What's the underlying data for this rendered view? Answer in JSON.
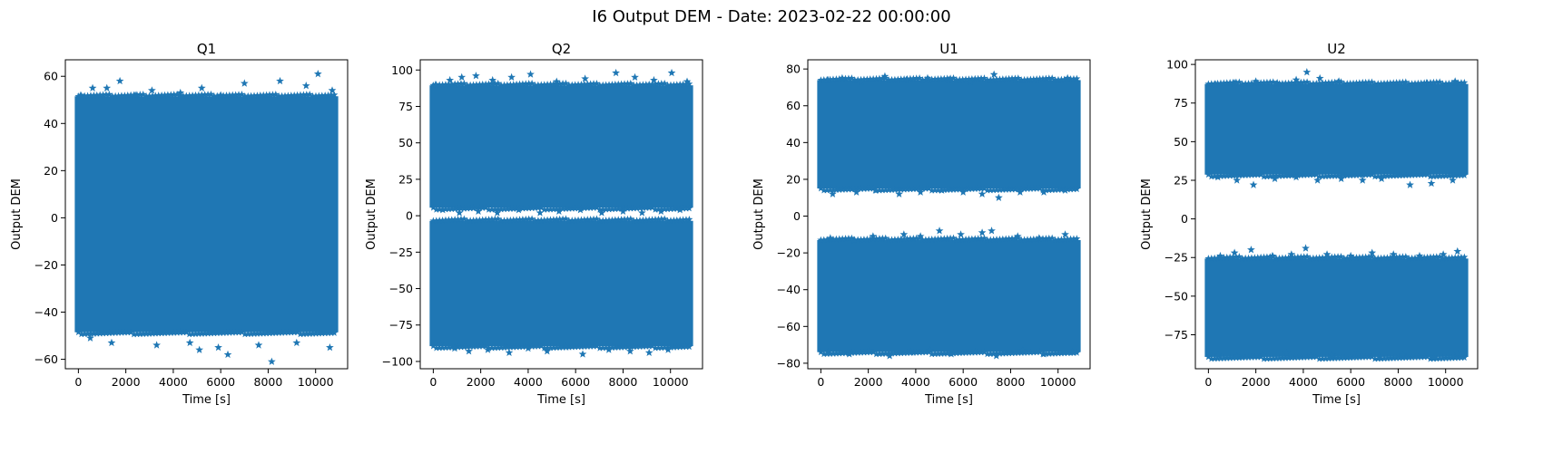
{
  "figure": {
    "suptitle": "I6 Output DEM - Date: 2023-02-22 00:00:00"
  },
  "chart_data": [
    {
      "type": "scatter",
      "title": "Q1",
      "xlabel": "Time [s]",
      "ylabel": "Output DEM",
      "marker": "star",
      "color": "#1f77b4",
      "xlim": [
        -550,
        11350
      ],
      "ylim": [
        -64,
        67
      ],
      "xticks": [
        0,
        2000,
        4000,
        6000,
        8000,
        10000
      ],
      "yticks": [
        -60,
        -40,
        -20,
        0,
        20,
        40,
        60
      ],
      "x_range": [
        0,
        10800
      ],
      "bands": [
        {
          "y_min": -47,
          "y_max": 50
        }
      ],
      "outliers": [
        [
          100,
          52
        ],
        [
          600,
          55
        ],
        [
          1200,
          55
        ],
        [
          1750,
          58
        ],
        [
          2400,
          52
        ],
        [
          3100,
          54
        ],
        [
          4300,
          53
        ],
        [
          5200,
          55
        ],
        [
          6000,
          52
        ],
        [
          7000,
          57
        ],
        [
          8500,
          58
        ],
        [
          9600,
          56
        ],
        [
          10100,
          61
        ],
        [
          10700,
          54
        ],
        [
          500,
          -51
        ],
        [
          1400,
          -53
        ],
        [
          3300,
          -54
        ],
        [
          4700,
          -53
        ],
        [
          5100,
          -56
        ],
        [
          5900,
          -55
        ],
        [
          6300,
          -58
        ],
        [
          7600,
          -54
        ],
        [
          8150,
          -61
        ],
        [
          9200,
          -53
        ],
        [
          10600,
          -55
        ]
      ]
    },
    {
      "type": "scatter",
      "title": "Q2",
      "xlabel": "Time [s]",
      "ylabel": "Output DEM",
      "marker": "star",
      "color": "#1f77b4",
      "xlim": [
        -550,
        11350
      ],
      "ylim": [
        -105,
        107
      ],
      "xticks": [
        0,
        2000,
        4000,
        6000,
        8000,
        10000
      ],
      "yticks": [
        -100,
        -75,
        -50,
        -25,
        0,
        25,
        50,
        75,
        100
      ],
      "x_range": [
        0,
        10800
      ],
      "bands": [
        {
          "y_min": 8,
          "y_max": 87
        },
        {
          "y_min": -87,
          "y_max": -6
        }
      ],
      "outliers": [
        [
          100,
          90
        ],
        [
          700,
          93
        ],
        [
          1200,
          95
        ],
        [
          1800,
          96
        ],
        [
          2500,
          93
        ],
        [
          3300,
          95
        ],
        [
          4100,
          97
        ],
        [
          5200,
          92
        ],
        [
          6400,
          94
        ],
        [
          7700,
          98
        ],
        [
          8500,
          95
        ],
        [
          9300,
          93
        ],
        [
          10050,
          98
        ],
        [
          10700,
          92
        ],
        [
          400,
          4
        ],
        [
          1100,
          2
        ],
        [
          1900,
          3
        ],
        [
          2700,
          2
        ],
        [
          3600,
          4
        ],
        [
          4500,
          2
        ],
        [
          5300,
          3
        ],
        [
          6200,
          4
        ],
        [
          7100,
          2
        ],
        [
          8000,
          3
        ],
        [
          8800,
          2
        ],
        [
          9600,
          3
        ],
        [
          10400,
          4
        ],
        [
          300,
          -88
        ],
        [
          900,
          -91
        ],
        [
          1500,
          -93
        ],
        [
          2300,
          -92
        ],
        [
          3200,
          -94
        ],
        [
          4000,
          -91
        ],
        [
          4800,
          -93
        ],
        [
          5600,
          -90
        ],
        [
          6300,
          -95
        ],
        [
          7400,
          -92
        ],
        [
          8300,
          -93
        ],
        [
          9100,
          -94
        ],
        [
          9900,
          -92
        ],
        [
          10600,
          -89
        ]
      ]
    },
    {
      "type": "scatter",
      "title": "U1",
      "xlabel": "Time [s]",
      "ylabel": "Output DEM",
      "marker": "star",
      "color": "#1f77b4",
      "xlim": [
        -550,
        11350
      ],
      "ylim": [
        -83,
        85
      ],
      "xticks": [
        0,
        2000,
        4000,
        6000,
        8000,
        10000
      ],
      "yticks": [
        -80,
        -60,
        -40,
        -20,
        0,
        20,
        40,
        60,
        80
      ],
      "x_range": [
        0,
        10800
      ],
      "bands": [
        {
          "y_min": 17,
          "y_max": 72
        },
        {
          "y_min": -72,
          "y_max": -15
        }
      ],
      "outliers": [
        [
          300,
          74
        ],
        [
          900,
          75
        ],
        [
          1700,
          73
        ],
        [
          2700,
          76
        ],
        [
          3600,
          74
        ],
        [
          4500,
          75
        ],
        [
          5400,
          74
        ],
        [
          6300,
          73
        ],
        [
          7300,
          77
        ],
        [
          8200,
          74
        ],
        [
          9100,
          74
        ],
        [
          10400,
          75
        ],
        [
          500,
          12
        ],
        [
          1500,
          13
        ],
        [
          2300,
          14
        ],
        [
          3300,
          12
        ],
        [
          4200,
          13
        ],
        [
          5100,
          14
        ],
        [
          6000,
          13
        ],
        [
          6800,
          12
        ],
        [
          7500,
          10
        ],
        [
          8400,
          13
        ],
        [
          9400,
          13
        ],
        [
          10300,
          14
        ],
        [
          400,
          -12
        ],
        [
          1400,
          -13
        ],
        [
          2200,
          -11
        ],
        [
          3500,
          -10
        ],
        [
          4200,
          -11
        ],
        [
          5000,
          -8
        ],
        [
          5900,
          -10
        ],
        [
          6800,
          -9
        ],
        [
          7200,
          -8
        ],
        [
          8300,
          -11
        ],
        [
          9200,
          -12
        ],
        [
          10300,
          -10
        ],
        [
          300,
          -74
        ],
        [
          1200,
          -75
        ],
        [
          2000,
          -73
        ],
        [
          2900,
          -76
        ],
        [
          3800,
          -74
        ],
        [
          4600,
          -73
        ],
        [
          5500,
          -75
        ],
        [
          6500,
          -74
        ],
        [
          7400,
          -76
        ],
        [
          8500,
          -73
        ],
        [
          9400,
          -75
        ],
        [
          10600,
          -74
        ]
      ]
    },
    {
      "type": "scatter",
      "title": "U2",
      "xlabel": "Time [s]",
      "ylabel": "Output DEM",
      "marker": "star",
      "color": "#1f77b4",
      "xlim": [
        -550,
        11350
      ],
      "ylim": [
        -97,
        103
      ],
      "xticks": [
        0,
        2000,
        4000,
        6000,
        8000,
        10000
      ],
      "yticks": [
        -75,
        -50,
        -25,
        0,
        25,
        50,
        75,
        100
      ],
      "x_range": [
        0,
        10800
      ],
      "bands": [
        {
          "y_min": 31,
          "y_max": 85
        },
        {
          "y_min": -87,
          "y_max": -28
        }
      ],
      "outliers": [
        [
          300,
          87
        ],
        [
          1100,
          88
        ],
        [
          2000,
          89
        ],
        [
          2900,
          88
        ],
        [
          3700,
          90
        ],
        [
          4150,
          95
        ],
        [
          4700,
          91
        ],
        [
          5500,
          89
        ],
        [
          6500,
          88
        ],
        [
          7400,
          87
        ],
        [
          8300,
          86
        ],
        [
          9200,
          88
        ],
        [
          10400,
          89
        ],
        [
          400,
          27
        ],
        [
          1200,
          25
        ],
        [
          1900,
          22
        ],
        [
          2800,
          26
        ],
        [
          3700,
          27
        ],
        [
          4600,
          25
        ],
        [
          5600,
          26
        ],
        [
          6500,
          25
        ],
        [
          7300,
          26
        ],
        [
          8500,
          22
        ],
        [
          9400,
          23
        ],
        [
          10300,
          25
        ],
        [
          500,
          -24
        ],
        [
          1100,
          -22
        ],
        [
          1800,
          -20
        ],
        [
          2700,
          -24
        ],
        [
          3500,
          -23
        ],
        [
          4100,
          -19
        ],
        [
          5000,
          -23
        ],
        [
          6000,
          -24
        ],
        [
          6900,
          -22
        ],
        [
          7800,
          -23
        ],
        [
          8900,
          -24
        ],
        [
          9900,
          -23
        ],
        [
          10500,
          -21
        ],
        [
          400,
          -88
        ],
        [
          1200,
          -89
        ],
        [
          2300,
          -88
        ],
        [
          3300,
          -87
        ],
        [
          4300,
          -89
        ],
        [
          5200,
          -88
        ],
        [
          6300,
          -87
        ],
        [
          7200,
          -89
        ],
        [
          8200,
          -88
        ],
        [
          9500,
          -90
        ],
        [
          10500,
          -87
        ]
      ]
    }
  ]
}
